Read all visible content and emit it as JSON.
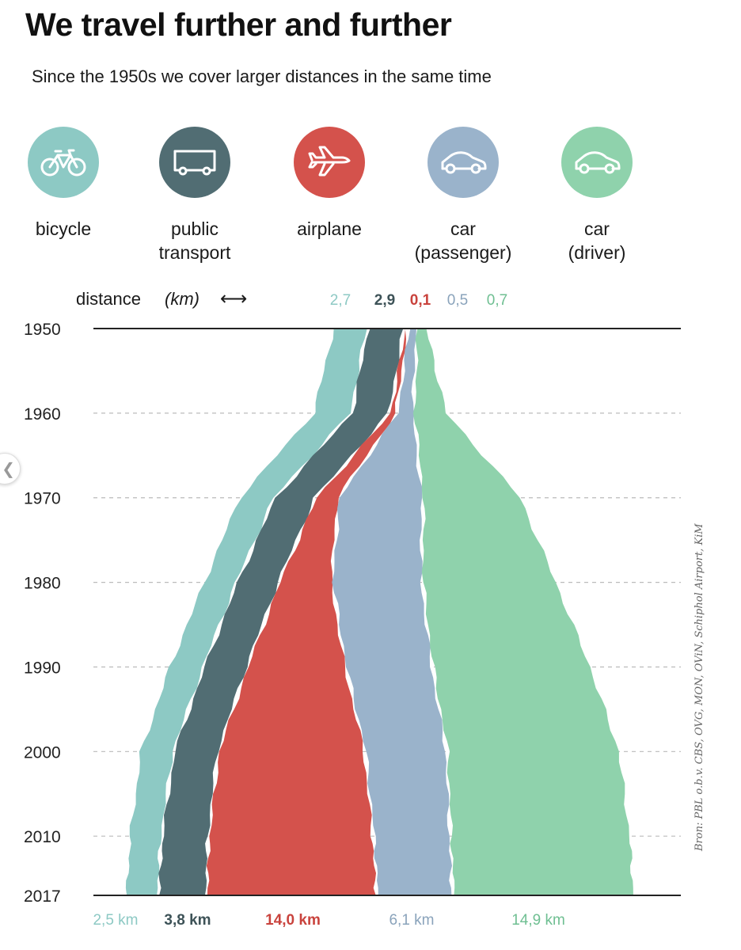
{
  "title": "We travel further and further",
  "subtitle": "Since the 1950s we cover larger distances in the same time",
  "modes": [
    {
      "label": "bicycle",
      "color": "#8dc9c4",
      "icon": "bicycle-icon"
    },
    {
      "label": "public\ntransport",
      "color": "#516d73",
      "icon": "bus-icon"
    },
    {
      "label": "airplane",
      "color": "#d4524c",
      "icon": "airplane-icon"
    },
    {
      "label": "car\n(passenger)",
      "color": "#9ab3cb",
      "icon": "car-icon"
    },
    {
      "label": "car\n(driver)",
      "color": "#8fd2ac",
      "icon": "car-icon"
    }
  ],
  "source": "Bron: PBL o.b.v. CBS, OVG, MON, OViN, Schiphol Airport, KiM",
  "chart_data": {
    "type": "area",
    "title": "We travel further and further",
    "legend_label": "distance",
    "unit_label": "(km)",
    "arrow": "⟷",
    "years": [
      1950,
      1960,
      1970,
      1980,
      1990,
      2000,
      2010,
      2017
    ],
    "year_labels": [
      "1950",
      "1960",
      "1970",
      "1980",
      "1990",
      "2000",
      "2010",
      "2017"
    ],
    "series": [
      {
        "name": "bicycle",
        "color": "#8dc9c4",
        "label_color": "#8dc9c4",
        "start_label": "2,7",
        "end_label": "2,5 km",
        "values": [
          2.7,
          3.0,
          2.8,
          2.6,
          2.7,
          2.6,
          2.5,
          2.5
        ]
      },
      {
        "name": "public transport",
        "color": "#516d73",
        "label_color": "#3d5257",
        "start_label": "2,9",
        "end_label": "3,8 km",
        "values": [
          2.9,
          3.0,
          3.2,
          3.3,
          3.4,
          3.5,
          3.7,
          3.8
        ]
      },
      {
        "name": "airplane",
        "color": "#d4524c",
        "label_color": "#c9433d",
        "start_label": "0,1",
        "end_label": "14,0 km",
        "values": [
          0.1,
          0.4,
          1.7,
          4.2,
          8.0,
          12.0,
          13.5,
          14.0
        ]
      },
      {
        "name": "car (passenger)",
        "color": "#9ab3cb",
        "label_color": "#8aa3bb",
        "start_label": "0,5",
        "end_label": "6,1 km",
        "values": [
          0.5,
          1.2,
          6.8,
          7.3,
          7.0,
          6.6,
          6.2,
          6.1
        ]
      },
      {
        "name": "car (driver)",
        "color": "#8fd2ac",
        "label_color": "#6fbf92",
        "start_label": "0,7",
        "end_label": "14,9 km",
        "values": [
          0.7,
          2.6,
          8.0,
          11.0,
          13.0,
          14.2,
          14.8,
          14.9
        ]
      }
    ]
  }
}
